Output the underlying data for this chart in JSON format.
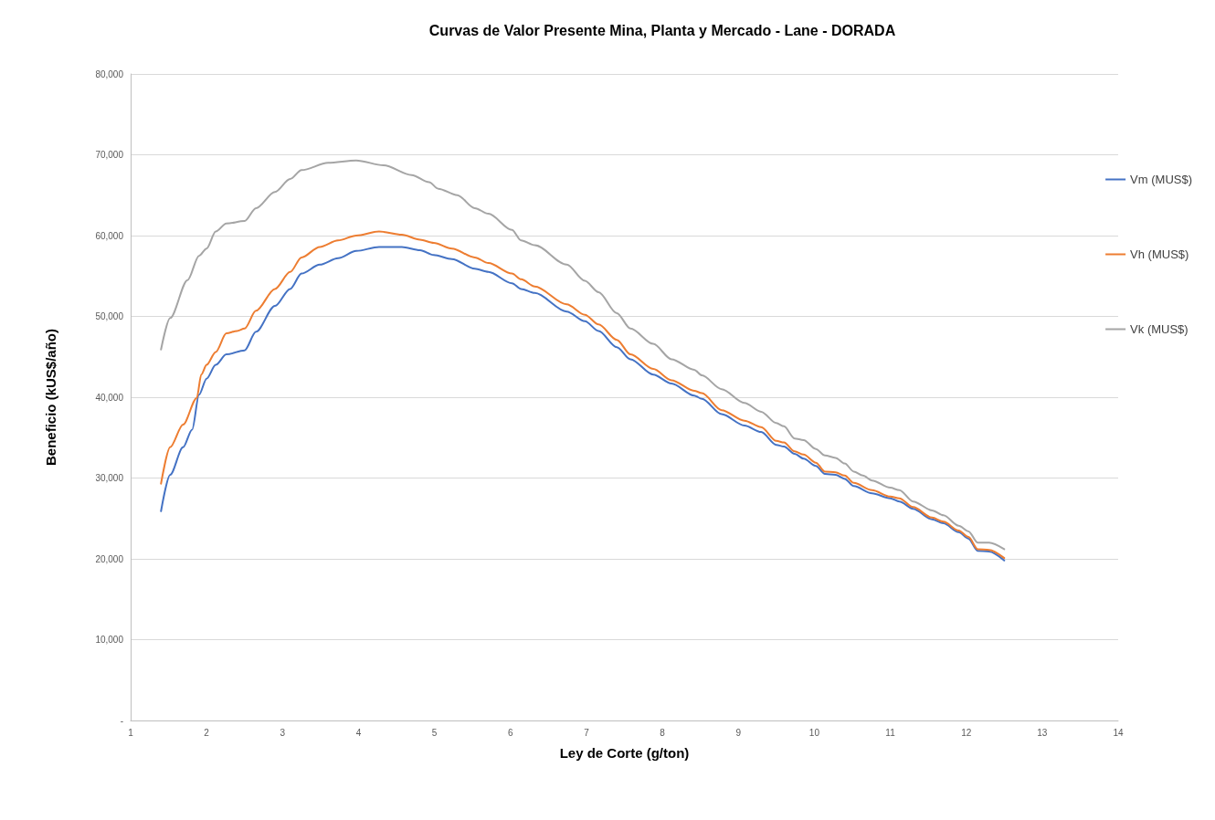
{
  "chart_data": {
    "type": "line",
    "title": "Curvas de Valor Presente Mina, Planta y Mercado - Lane - DORADA",
    "xlabel": "Ley de Corte (g/ton)",
    "ylabel": "Beneficio (kUS$/año)",
    "xlim": [
      1,
      14
    ],
    "xticks": [
      1,
      2,
      3,
      4,
      5,
      6,
      7,
      8,
      9,
      10,
      11,
      12,
      13,
      14
    ],
    "ylim": [
      0,
      80000
    ],
    "yticks": [
      {
        "value": 0,
        "label": "-"
      },
      {
        "value": 10000,
        "label": "10,000"
      },
      {
        "value": 20000,
        "label": "20,000"
      },
      {
        "value": 30000,
        "label": "30,000"
      },
      {
        "value": 40000,
        "label": "40,000"
      },
      {
        "value": 50000,
        "label": "50,000"
      },
      {
        "value": 60000,
        "label": "60,000"
      },
      {
        "value": 70000,
        "label": "70,000"
      },
      {
        "value": 80000,
        "label": "80,000"
      }
    ],
    "grid": "y",
    "legend": "right",
    "marker": "none",
    "line_style": "solid",
    "series": [
      {
        "name": "Vm (MUS$)",
        "color": "#4472c4",
        "x": [
          1.4,
          1.52,
          1.69,
          1.81,
          1.9,
          2.0,
          2.12,
          2.26,
          2.5,
          2.65,
          2.9,
          3.1,
          3.25,
          3.49,
          3.73,
          3.97,
          4.27,
          4.57,
          4.81,
          4.99,
          5.23,
          5.53,
          5.71,
          6.02,
          6.14,
          6.32,
          6.74,
          6.98,
          7.16,
          7.4,
          7.58,
          7.88,
          8.12,
          8.42,
          8.52,
          8.78,
          9.08,
          9.3,
          9.5,
          9.6,
          9.74,
          9.86,
          10.02,
          10.14,
          10.28,
          10.4,
          10.52,
          10.76,
          11.0,
          11.12,
          11.3,
          11.55,
          11.7,
          11.9,
          12.03,
          12.15,
          12.3,
          12.5
        ],
        "values": [
          25900,
          30400,
          33800,
          36000,
          40300,
          42300,
          44000,
          45300,
          45800,
          48100,
          51300,
          53400,
          55300,
          56400,
          57200,
          58100,
          58600,
          58600,
          58200,
          57600,
          57100,
          55900,
          55500,
          54100,
          53400,
          52900,
          50600,
          49400,
          48200,
          46200,
          44700,
          42800,
          41700,
          40200,
          39800,
          37900,
          36500,
          35700,
          34100,
          33900,
          33000,
          32400,
          31500,
          30500,
          30400,
          29900,
          29000,
          28100,
          27500,
          27100,
          26200,
          24900,
          24400,
          23300,
          22500,
          21000,
          20900,
          19800
        ]
      },
      {
        "name": "Vh (MUS$)",
        "color": "#ed7d31",
        "x": [
          1.4,
          1.52,
          1.69,
          1.87,
          1.93,
          2.0,
          2.12,
          2.26,
          2.4,
          2.5,
          2.65,
          2.9,
          3.1,
          3.25,
          3.49,
          3.73,
          3.97,
          4.27,
          4.57,
          4.81,
          4.99,
          5.23,
          5.53,
          5.71,
          6.02,
          6.14,
          6.32,
          6.74,
          6.98,
          7.16,
          7.4,
          7.58,
          7.88,
          8.12,
          8.42,
          8.52,
          8.78,
          9.08,
          9.3,
          9.5,
          9.6,
          9.74,
          9.86,
          10.02,
          10.14,
          10.28,
          10.4,
          10.52,
          10.76,
          11.0,
          11.12,
          11.3,
          11.55,
          11.7,
          11.9,
          12.03,
          12.15,
          12.3,
          12.5
        ],
        "values": [
          29300,
          33800,
          36600,
          39900,
          42800,
          44000,
          45600,
          47900,
          48200,
          48500,
          50700,
          53400,
          55500,
          57300,
          58600,
          59400,
          60000,
          60500,
          60100,
          59500,
          59100,
          58400,
          57300,
          56600,
          55300,
          54600,
          53700,
          51500,
          50200,
          49000,
          47100,
          45300,
          43500,
          42100,
          40800,
          40500,
          38400,
          37100,
          36300,
          34600,
          34400,
          33300,
          32900,
          31900,
          30800,
          30700,
          30300,
          29400,
          28500,
          27700,
          27500,
          26400,
          25100,
          24600,
          23500,
          22700,
          21200,
          21100,
          20100
        ]
      },
      {
        "name": "Vk (MUS$)",
        "color": "#a5a5a5",
        "x": [
          1.4,
          1.52,
          1.75,
          1.9,
          2.0,
          2.12,
          2.26,
          2.5,
          2.65,
          2.9,
          3.1,
          3.25,
          3.6,
          3.97,
          4.33,
          4.7,
          4.93,
          5.05,
          5.3,
          5.53,
          5.71,
          6.02,
          6.14,
          6.32,
          6.74,
          6.98,
          7.16,
          7.4,
          7.58,
          7.88,
          8.12,
          8.42,
          8.52,
          8.78,
          9.08,
          9.3,
          9.5,
          9.6,
          9.74,
          9.86,
          10.02,
          10.14,
          10.28,
          10.4,
          10.52,
          10.64,
          10.76,
          11.0,
          11.12,
          11.3,
          11.55,
          11.7,
          11.9,
          12.03,
          12.15,
          12.3,
          12.5
        ],
        "values": [
          45900,
          49800,
          54500,
          57500,
          58400,
          60500,
          61500,
          61800,
          63400,
          65400,
          67000,
          68100,
          69000,
          69300,
          68700,
          67500,
          66600,
          65800,
          65000,
          63400,
          62700,
          60700,
          59400,
          58800,
          56400,
          54400,
          53000,
          50400,
          48500,
          46600,
          44700,
          43400,
          42700,
          41000,
          39300,
          38200,
          36800,
          36400,
          34900,
          34700,
          33600,
          32800,
          32500,
          31800,
          30800,
          30300,
          29700,
          28800,
          28500,
          27100,
          26000,
          25400,
          24100,
          23400,
          22000,
          22000,
          21200
        ]
      }
    ]
  }
}
